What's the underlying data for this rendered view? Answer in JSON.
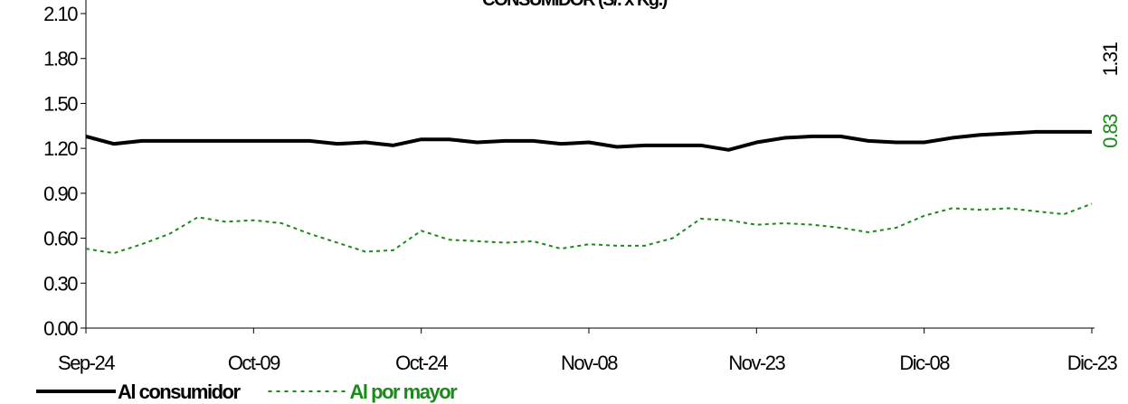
{
  "chart_data": {
    "type": "line",
    "title": "CONSUMIDOR   (S/. x Kg.)",
    "categories": [
      "Sep-24",
      null,
      null,
      null,
      null,
      null,
      "Oct-09",
      null,
      null,
      null,
      null,
      null,
      "Oct-24",
      null,
      null,
      null,
      null,
      null,
      "Nov-08",
      null,
      null,
      null,
      null,
      null,
      "Nov-23",
      null,
      null,
      null,
      null,
      null,
      "Dic-08",
      null,
      null,
      null,
      null,
      null,
      "Dic-23"
    ],
    "series": [
      {
        "name": "Al consumidor",
        "color": "#000000",
        "dash": "solid",
        "values": [
          1.28,
          1.23,
          1.25,
          1.25,
          1.25,
          1.25,
          1.25,
          1.25,
          1.25,
          1.23,
          1.24,
          1.22,
          1.26,
          1.26,
          1.24,
          1.25,
          1.25,
          1.23,
          1.24,
          1.21,
          1.22,
          1.22,
          1.22,
          1.19,
          1.24,
          1.27,
          1.28,
          1.28,
          1.25,
          1.24,
          1.24,
          1.27,
          1.29,
          1.3,
          1.31,
          1.31,
          1.31
        ]
      },
      {
        "name": "Al por mayor",
        "color": "#1a8a1a",
        "dash": "dashed",
        "values": [
          0.53,
          0.5,
          0.56,
          0.63,
          0.74,
          0.71,
          0.72,
          0.7,
          0.63,
          0.57,
          0.51,
          0.52,
          0.65,
          0.59,
          0.58,
          0.57,
          0.58,
          0.53,
          0.56,
          0.55,
          0.55,
          0.6,
          0.73,
          0.72,
          0.69,
          0.7,
          0.69,
          0.67,
          0.64,
          0.67,
          0.75,
          0.8,
          0.79,
          0.8,
          0.78,
          0.76,
          0.83
        ]
      }
    ],
    "annotations": [
      {
        "text": "1.31",
        "color": "#000000"
      },
      {
        "text": "0.83",
        "color": "#1a8a1a"
      }
    ],
    "ylim": [
      0,
      2.1
    ],
    "yticks": [
      {
        "value": 0,
        "label": "0.00"
      },
      {
        "value": 0.3,
        "label": "0.30"
      },
      {
        "value": 0.6,
        "label": "0.60"
      },
      {
        "value": 0.9,
        "label": "0.90"
      },
      {
        "value": 1.2,
        "label": "1.20"
      },
      {
        "value": 1.5,
        "label": "1.50"
      },
      {
        "value": 1.8,
        "label": "1.80"
      },
      {
        "value": 2.1,
        "label": "2.10"
      }
    ],
    "legend": "bottom-left"
  }
}
